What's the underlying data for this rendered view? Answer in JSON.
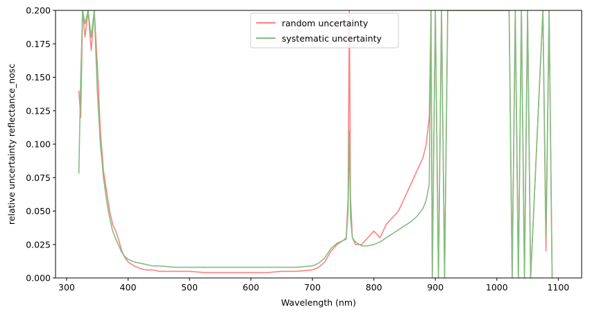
{
  "chart_data": {
    "type": "line",
    "xlabel": "Wavelength (nm)",
    "ylabel": "relative uncertainty reflectance_nosc",
    "xlim": [
      282,
      1138
    ],
    "ylim": [
      0,
      0.2
    ],
    "xticks": [
      {
        "value": 300,
        "label": "300"
      },
      {
        "value": 400,
        "label": "400"
      },
      {
        "value": 500,
        "label": "500"
      },
      {
        "value": 600,
        "label": "600"
      },
      {
        "value": 700,
        "label": "700"
      },
      {
        "value": 800,
        "label": "800"
      },
      {
        "value": 900,
        "label": "900"
      },
      {
        "value": 1000,
        "label": "1000"
      },
      {
        "value": 1100,
        "label": "1100"
      }
    ],
    "yticks": [
      {
        "value": 0.0,
        "label": "0.000"
      },
      {
        "value": 0.025,
        "label": "0.025"
      },
      {
        "value": 0.05,
        "label": "0.050"
      },
      {
        "value": 0.075,
        "label": "0.075"
      },
      {
        "value": 0.1,
        "label": "0.100"
      },
      {
        "value": 0.125,
        "label": "0.125"
      },
      {
        "value": 0.15,
        "label": "0.150"
      },
      {
        "value": 0.175,
        "label": "0.175"
      },
      {
        "value": 0.2,
        "label": "0.200"
      }
    ],
    "grid": false,
    "legend_position": "top-center",
    "series": [
      {
        "name": "random uncertainty",
        "color": "#ff7f7f",
        "x": [
          320,
          323,
          326,
          330,
          335,
          340,
          345,
          350,
          355,
          360,
          365,
          370,
          375,
          380,
          385,
          390,
          395,
          400,
          410,
          420,
          430,
          440,
          450,
          475,
          500,
          525,
          550,
          575,
          600,
          625,
          650,
          675,
          700,
          710,
          720,
          730,
          740,
          750,
          755,
          758,
          760,
          762,
          765,
          770,
          780,
          790,
          800,
          810,
          820,
          830,
          840,
          850,
          860,
          870,
          880,
          885,
          890,
          893,
          895,
          900,
          905,
          910,
          915,
          920,
          1020,
          1025,
          1030,
          1035,
          1040,
          1045,
          1050,
          1055,
          1075,
          1080,
          1085,
          1090
        ],
        "y": [
          0.14,
          0.12,
          0.2,
          0.18,
          0.2,
          0.17,
          0.2,
          0.16,
          0.11,
          0.08,
          0.065,
          0.05,
          0.04,
          0.035,
          0.028,
          0.02,
          0.015,
          0.012,
          0.009,
          0.007,
          0.006,
          0.006,
          0.005,
          0.005,
          0.005,
          0.004,
          0.004,
          0.004,
          0.004,
          0.004,
          0.005,
          0.005,
          0.006,
          0.008,
          0.012,
          0.02,
          0.025,
          0.028,
          0.03,
          0.06,
          0.2,
          0.06,
          0.03,
          0.025,
          0.025,
          0.03,
          0.035,
          0.03,
          0.04,
          0.045,
          0.05,
          0.06,
          0.07,
          0.08,
          0.09,
          0.1,
          0.12,
          0.2,
          0.0,
          0.2,
          0.0,
          0.2,
          0.0,
          0.2,
          0.2,
          0.0,
          0.2,
          0.0,
          0.2,
          0.0,
          0.2,
          0.0,
          0.2,
          0.02,
          0.2,
          0.0
        ]
      },
      {
        "name": "systematic uncertainty",
        "color": "#7fbf7f",
        "x": [
          320,
          323,
          326,
          330,
          335,
          340,
          345,
          350,
          355,
          360,
          365,
          370,
          375,
          380,
          385,
          390,
          395,
          400,
          410,
          420,
          430,
          440,
          450,
          475,
          500,
          525,
          550,
          575,
          600,
          625,
          650,
          675,
          700,
          710,
          720,
          730,
          740,
          750,
          755,
          758,
          760,
          762,
          765,
          770,
          780,
          790,
          800,
          810,
          820,
          830,
          840,
          850,
          860,
          870,
          880,
          885,
          890,
          893,
          895,
          900,
          905,
          910,
          915,
          920,
          1020,
          1025,
          1030,
          1035,
          1040,
          1045,
          1050,
          1055,
          1075,
          1080,
          1085,
          1090
        ],
        "y": [
          0.078,
          0.15,
          0.2,
          0.19,
          0.2,
          0.18,
          0.2,
          0.14,
          0.1,
          0.075,
          0.058,
          0.045,
          0.035,
          0.029,
          0.024,
          0.019,
          0.016,
          0.014,
          0.012,
          0.011,
          0.01,
          0.009,
          0.009,
          0.008,
          0.008,
          0.008,
          0.008,
          0.008,
          0.008,
          0.008,
          0.008,
          0.008,
          0.009,
          0.011,
          0.015,
          0.022,
          0.026,
          0.028,
          0.029,
          0.05,
          0.11,
          0.045,
          0.03,
          0.027,
          0.024,
          0.024,
          0.025,
          0.027,
          0.03,
          0.033,
          0.036,
          0.039,
          0.042,
          0.046,
          0.052,
          0.058,
          0.07,
          0.2,
          0.0,
          0.2,
          0.0,
          0.2,
          0.0,
          0.2,
          0.2,
          0.0,
          0.2,
          0.0,
          0.2,
          0.0,
          0.2,
          0.0,
          0.2,
          0.03,
          0.2,
          0.0
        ]
      }
    ]
  }
}
